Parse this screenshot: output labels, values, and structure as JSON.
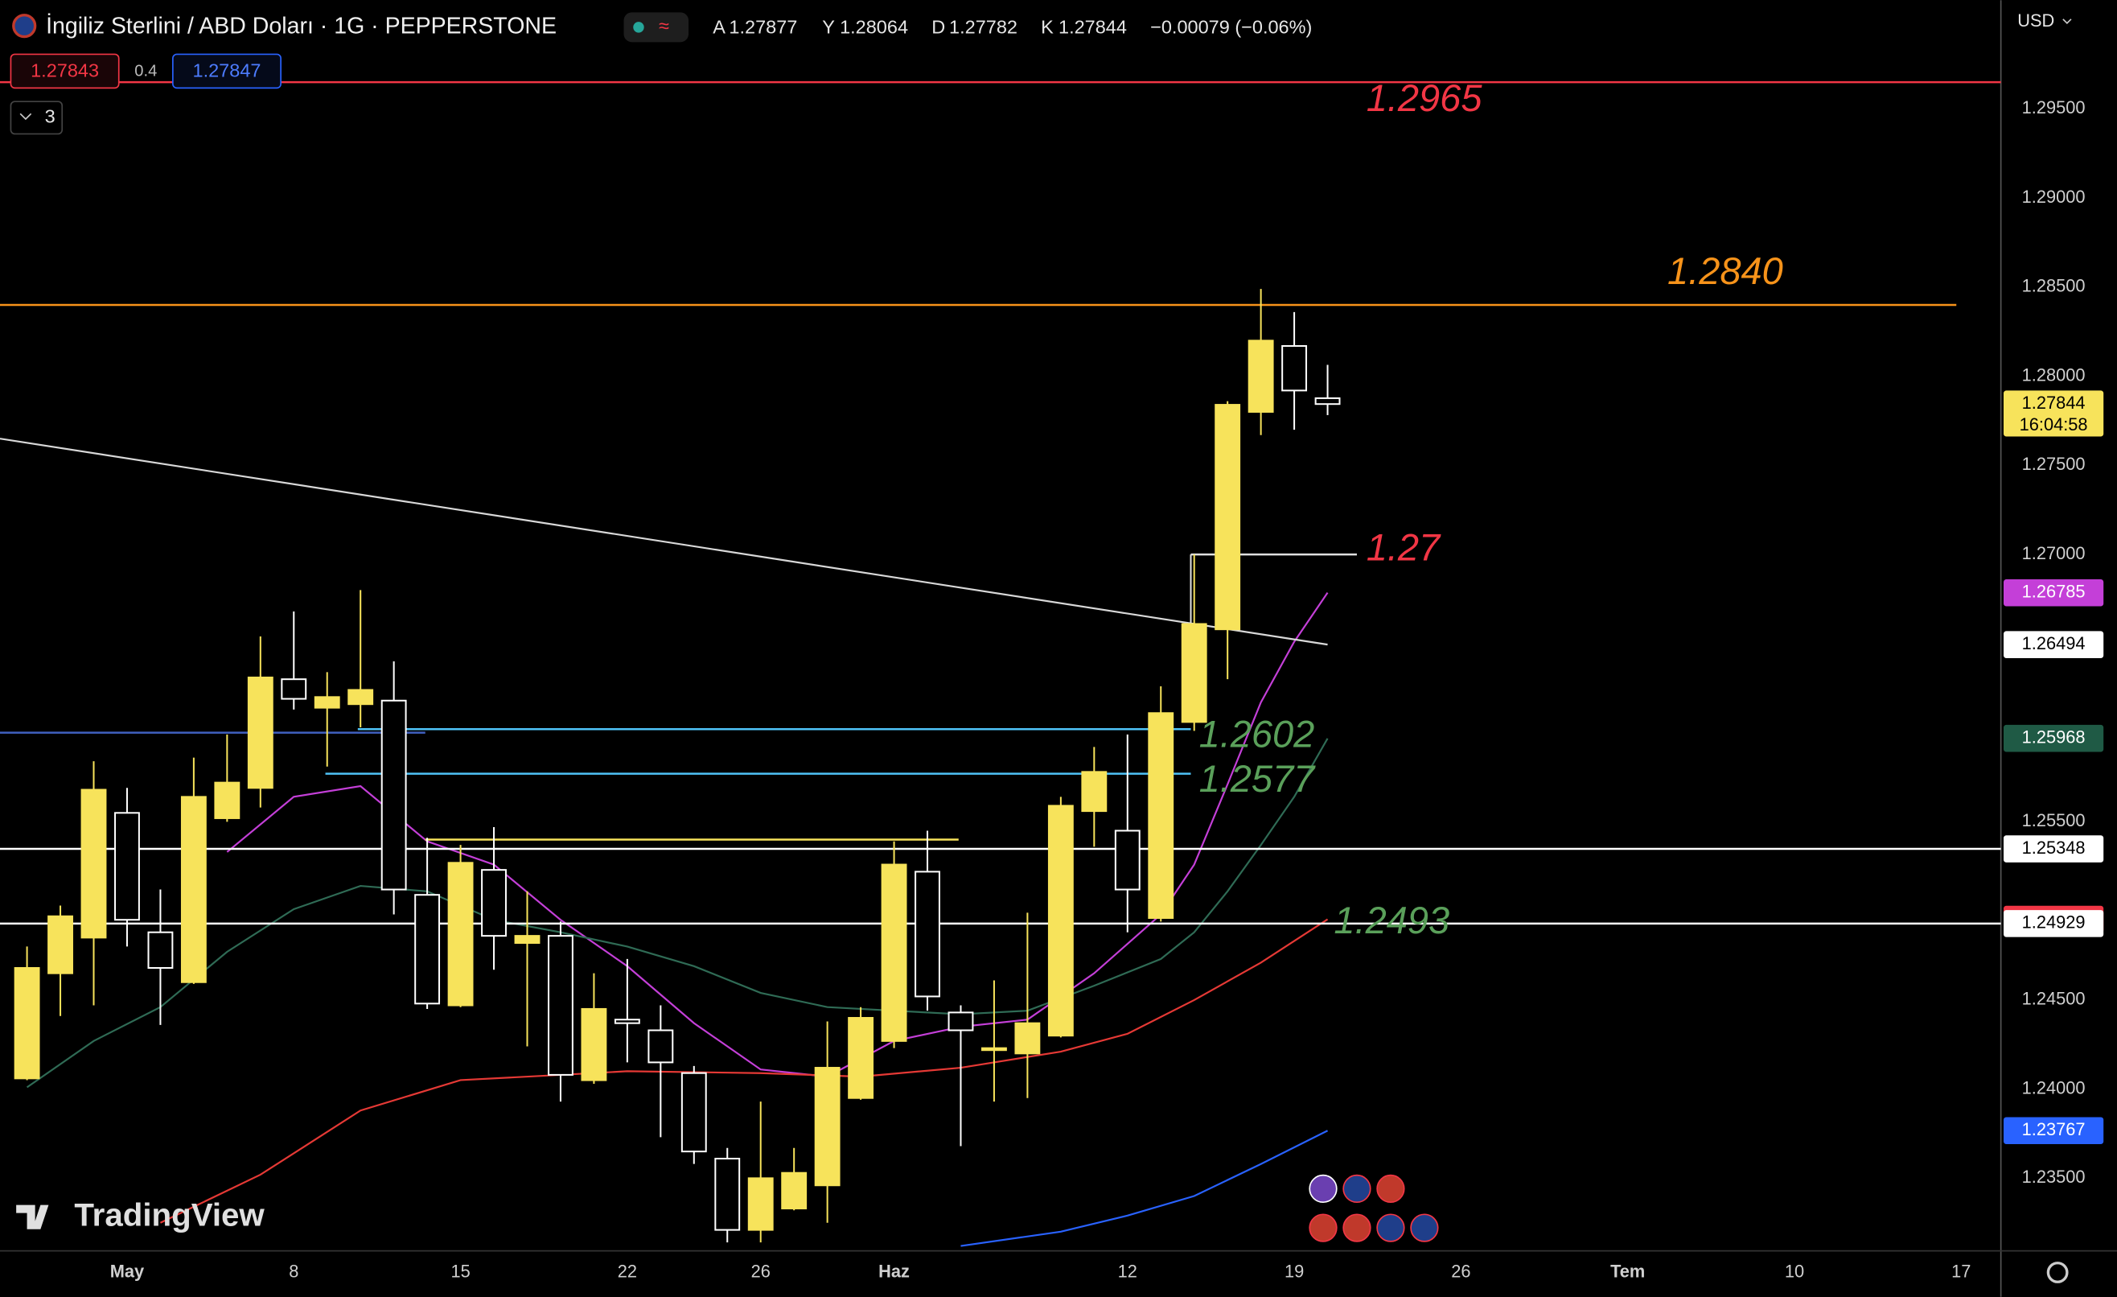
{
  "header": {
    "title": "İngiliz Sterlini / ABD Doları · 1G · PEPPERSTONE",
    "ohlc_labels": [
      "A",
      "Y",
      "D",
      "K"
    ],
    "change": "−0.00079 (−0.06%)",
    "bid": 1.27843,
    "spread": 0.4,
    "ask": 1.27847,
    "indicator_count": 3,
    "currency": "USD"
  },
  "branding": "TradingView",
  "chart_data": {
    "type": "candlestick",
    "title": "İngiliz Sterlini / ABD Doları · 1G · PEPPERSTONE",
    "x": [
      0,
      1,
      2,
      3,
      4,
      5,
      6,
      7,
      8,
      9,
      10,
      11,
      12,
      13,
      14,
      15,
      16,
      17,
      18,
      19,
      20,
      21,
      22,
      23,
      24,
      25,
      26,
      27,
      28,
      29,
      30,
      31,
      32,
      33,
      34,
      35,
      36,
      37,
      38,
      39
    ],
    "open": [
      1.2406,
      1.2465,
      1.2485,
      1.2555,
      1.2488,
      1.246,
      1.2552,
      1.2569,
      1.263,
      1.2614,
      1.2616,
      1.2618,
      1.2509,
      1.2447,
      1.2523,
      1.2482,
      1.2486,
      1.2405,
      1.2439,
      1.2433,
      1.2409,
      1.2361,
      1.2321,
      1.2333,
      1.2346,
      1.2395,
      1.2427,
      1.2522,
      1.2443,
      1.2422,
      1.242,
      1.243,
      1.2556,
      1.2545,
      1.2496,
      1.2606,
      1.2658,
      1.278,
      1.2817,
      1.27877
    ],
    "high": [
      1.248,
      1.2503,
      1.2584,
      1.2569,
      1.2512,
      1.2586,
      1.2599,
      1.2654,
      1.2668,
      1.2634,
      1.268,
      1.264,
      1.2541,
      1.2537,
      1.2547,
      1.2511,
      1.2494,
      1.2465,
      1.2473,
      1.2447,
      1.2413,
      1.2367,
      1.2393,
      1.2367,
      1.2438,
      1.2446,
      1.2539,
      1.2545,
      1.2447,
      1.2461,
      1.2499,
      1.2564,
      1.2592,
      1.2599,
      1.2626,
      1.27,
      1.2786,
      1.2849,
      1.2836,
      1.28064
    ],
    "low": [
      1.2405,
      1.2441,
      1.2447,
      1.248,
      1.2436,
      1.2459,
      1.255,
      1.2558,
      1.2613,
      1.2581,
      1.2603,
      1.2498,
      1.2445,
      1.2446,
      1.2467,
      1.2424,
      1.2393,
      1.2403,
      1.2415,
      1.2373,
      1.2358,
      1.2314,
      1.2314,
      1.2332,
      1.2325,
      1.2394,
      1.2423,
      1.2444,
      1.2368,
      1.2393,
      1.2395,
      1.2429,
      1.2536,
      1.2488,
      1.2494,
      1.2601,
      1.263,
      1.2767,
      1.277,
      1.27782
    ],
    "close": [
      1.2468,
      1.2497,
      1.2568,
      1.2495,
      1.2468,
      1.2564,
      1.2572,
      1.2631,
      1.2619,
      1.262,
      1.2624,
      1.2512,
      1.2448,
      1.2527,
      1.2486,
      1.2486,
      1.2408,
      1.2445,
      1.2437,
      1.2415,
      1.2365,
      1.2321,
      1.235,
      1.2353,
      1.2412,
      1.244,
      1.2526,
      1.2452,
      1.2433,
      1.2423,
      1.2437,
      1.2559,
      1.2578,
      1.2512,
      1.2611,
      1.2661,
      1.2784,
      1.282,
      1.2792,
      1.27844
    ],
    "up_color": "#f7e35b",
    "down_color": "#ffffff",
    "countdown": "16:04:58",
    "xlim": [
      -0.81,
      59.19
    ],
    "xticks": [
      {
        "value": 3,
        "label": "May"
      },
      {
        "value": 8,
        "label": "8"
      },
      {
        "value": 13,
        "label": "15"
      },
      {
        "value": 18,
        "label": "22"
      },
      {
        "value": 22,
        "label": "26"
      },
      {
        "value": 26,
        "label": "Haz"
      },
      {
        "value": 33,
        "label": "12"
      },
      {
        "value": 38,
        "label": "19"
      },
      {
        "value": 43,
        "label": "26"
      },
      {
        "value": 48,
        "label": "Tem"
      },
      {
        "value": 53,
        "label": "10"
      },
      {
        "value": 58,
        "label": "17"
      }
    ],
    "ylim": [
      1.231,
      1.3011
    ],
    "yticks": [
      {
        "value": 1.295,
        "label": "1.29500"
      },
      {
        "value": 1.29,
        "label": "1.29000"
      },
      {
        "value": 1.285,
        "label": "1.28500"
      },
      {
        "value": 1.28,
        "label": "1.28000"
      },
      {
        "value": 1.275,
        "label": "1.27500"
      },
      {
        "value": 1.27,
        "label": "1.27000"
      },
      {
        "value": 1.255,
        "label": "1.25500"
      },
      {
        "value": 1.245,
        "label": "1.24500"
      },
      {
        "value": 1.24,
        "label": "1.24000"
      },
      {
        "value": 1.235,
        "label": "1.23500"
      }
    ],
    "grid": false,
    "indicators": [
      {
        "color": "#c43fd8",
        "x": [
          6,
          8,
          10,
          12,
          14,
          16,
          18,
          20,
          22,
          24,
          26,
          28,
          30,
          32,
          34,
          35,
          36,
          37,
          38,
          39
        ],
        "values": [
          1.2533,
          1.2564,
          1.257,
          1.2539,
          1.2526,
          1.2495,
          1.2469,
          1.2437,
          1.2411,
          1.2407,
          1.2427,
          1.2435,
          1.2439,
          1.2465,
          1.2498,
          1.2526,
          1.2571,
          1.2617,
          1.2651,
          1.26785
        ]
      },
      {
        "color": "#2f6b55",
        "x": [
          0,
          2,
          4,
          6,
          8,
          10,
          12,
          14,
          16,
          18,
          20,
          22,
          24,
          26,
          28,
          30,
          32,
          34,
          35,
          36,
          37,
          38,
          39
        ],
        "values": [
          1.2401,
          1.2427,
          1.2446,
          1.2477,
          1.2501,
          1.2514,
          1.2511,
          1.2495,
          1.2488,
          1.248,
          1.2469,
          1.2454,
          1.2446,
          1.2444,
          1.2442,
          1.2444,
          1.2458,
          1.2473,
          1.2488,
          1.2511,
          1.2537,
          1.2564,
          1.25968
        ]
      },
      {
        "color": "#e53935",
        "x": [
          4,
          7,
          10,
          13,
          16,
          18,
          22,
          25,
          28,
          31,
          33,
          35,
          37,
          39
        ],
        "values": [
          1.2325,
          1.2352,
          1.2388,
          1.2405,
          1.2408,
          1.241,
          1.2409,
          1.2407,
          1.2412,
          1.2421,
          1.2431,
          1.245,
          1.2471,
          1.24953
        ]
      },
      {
        "color": "#2962ff",
        "x": [
          28,
          31,
          33,
          35,
          37,
          39
        ],
        "values": [
          1.2312,
          1.232,
          1.2329,
          1.234,
          1.2358,
          1.23767
        ]
      }
    ],
    "trendline": {
      "color": "#d8d8d8",
      "x": [
        -0.81,
        39
      ],
      "values": [
        1.2765,
        1.26494
      ]
    },
    "levels": [
      {
        "value": 1.2965,
        "color": "#f23645",
        "label_color": "#f23645"
      },
      {
        "value": 1.284,
        "label": "1.2840",
        "color": "#f7931a",
        "label_color": "#f7931a"
      },
      {
        "value": 1.27,
        "color": "#e0e0e0",
        "label_color": "#f23645"
      },
      {
        "value": 1.2602,
        "color": "#4fc3f7",
        "label_color": "#5aa05a"
      },
      {
        "value": 1.2577,
        "color": "#4fc3f7",
        "label_color": "#5aa05a"
      },
      {
        "value": 1.2493,
        "label_color": "#5aa05a"
      },
      {
        "value": 1.254,
        "color": "#f7e35b"
      },
      {
        "value": 1.26,
        "color": "#4060c0"
      },
      {
        "value": 1.25348,
        "color": "#ffffff"
      },
      {
        "value": 1.24929,
        "color": "#ffffff"
      }
    ]
  }
}
